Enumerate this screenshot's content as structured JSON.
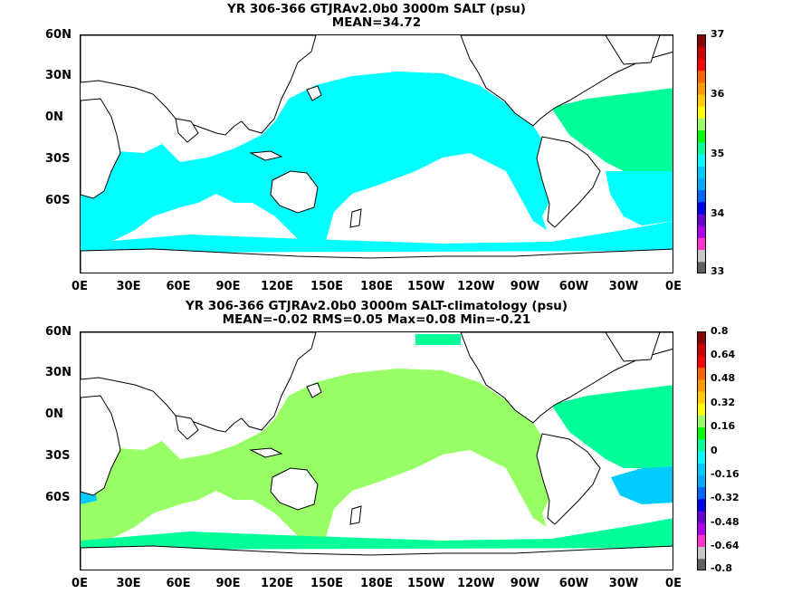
{
  "panels": [
    {
      "id": "top",
      "title_line1": "YR 306-366 GTJRAv2.0b0 3000m SALT (psu)",
      "title_line2": "MEAN=34.72",
      "y_ticks": [
        "60N",
        "30N",
        "0N",
        "30S",
        "60S"
      ],
      "x_ticks": [
        "0E",
        "30E",
        "60E",
        "90E",
        "120E",
        "150E",
        "180E",
        "150W",
        "120W",
        "90W",
        "60W",
        "30W",
        "0E"
      ],
      "colorbar_labels": [
        "37",
        "36",
        "35",
        "34",
        "33"
      ],
      "colorbar_colors": [
        "#606060",
        "#c8c8c8",
        "#ff33cc",
        "#aa00ee",
        "#6600cc",
        "#0000ee",
        "#0066ff",
        "#00aaff",
        "#00ccff",
        "#00ffff",
        "#00ff99",
        "#00ff00",
        "#99ff66",
        "#ffff00",
        "#ffcc00",
        "#ff9900",
        "#ff6600",
        "#ff0000",
        "#cc0000",
        "#880000"
      ],
      "ocean_fill": "#00ffff",
      "highlight_fill": "#00ff99"
    },
    {
      "id": "bottom",
      "title_line1": "YR 306-366 GTJRAv2.0b0 3000m SALT-climatology (psu)",
      "title_line2": "MEAN=-0.02   RMS=0.05   Max=0.08   Min=-0.21",
      "y_ticks": [
        "60N",
        "30N",
        "0N",
        "30S",
        "60S"
      ],
      "x_ticks": [
        "0E",
        "30E",
        "60E",
        "90E",
        "120E",
        "150E",
        "180E",
        "150W",
        "120W",
        "90W",
        "60W",
        "30W",
        "0E"
      ],
      "colorbar_labels": [
        "0.8",
        "0.64",
        "0.48",
        "0.32",
        "0.16",
        "0",
        "-0.16",
        "-0.32",
        "-0.48",
        "-0.64",
        "-0.8"
      ],
      "colorbar_colors": [
        "#606060",
        "#c8c8c8",
        "#ff33cc",
        "#aa00ee",
        "#6600cc",
        "#0000ee",
        "#0066ff",
        "#00aaff",
        "#00ccff",
        "#00ffff",
        "#00ff99",
        "#00ff00",
        "#99ff66",
        "#ffff00",
        "#ffcc00",
        "#ff9900",
        "#ff6600",
        "#ff0000",
        "#cc0000",
        "#880000"
      ],
      "ocean_fill": "#00ff99",
      "highlight_fill": "#99ff66",
      "negative_fill": "#00ccff"
    }
  ]
}
